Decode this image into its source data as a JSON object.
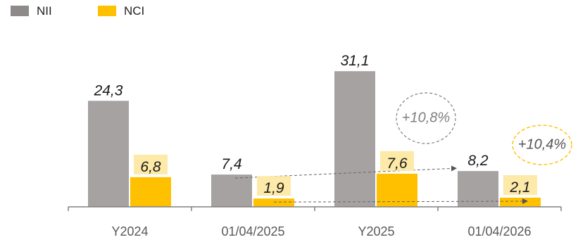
{
  "chart_data": {
    "type": "bar",
    "categories": [
      "Y2024",
      "01/04/2025",
      "Y2025",
      "01/04/2026"
    ],
    "series": [
      {
        "name": "NII",
        "values": [
          24.3,
          7.4,
          31.1,
          8.2
        ],
        "labels": [
          "24,3",
          "7,4",
          "31,1",
          "8,2"
        ],
        "color": "#a7a2a2"
      },
      {
        "name": "NCI",
        "values": [
          6.8,
          1.9,
          7.6,
          2.1
        ],
        "labels": [
          "6,8",
          "1,9",
          "7,6",
          "2,1"
        ],
        "color": "#ffc000"
      }
    ],
    "label_highlight_color": "#fde9a8",
    "annotations": [
      {
        "text": "+10,8%",
        "series": "NII",
        "from": "01/04/2025",
        "to": "01/04/2026",
        "style": "grey-dashed-circle"
      },
      {
        "text": "+10,4%",
        "series": "NCI",
        "from": "01/04/2025",
        "to": "01/04/2026",
        "style": "yellow-dashed-circle"
      }
    ],
    "ylim": [
      0,
      35
    ],
    "grid": false,
    "legend_position": "top-left"
  }
}
